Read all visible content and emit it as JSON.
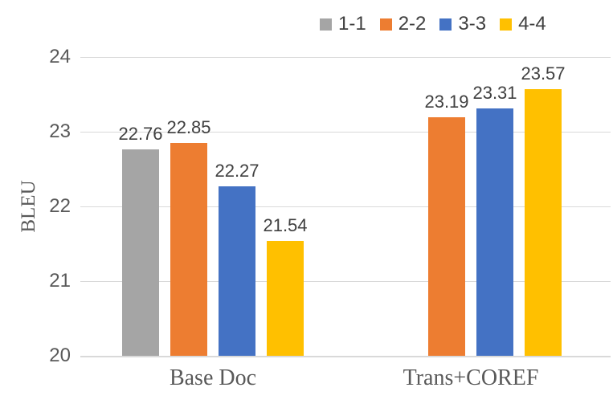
{
  "chart_data": {
    "type": "bar",
    "title": "",
    "xlabel": "",
    "ylabel": "BLEU",
    "ylim": [
      20,
      24
    ],
    "yticks": [
      20,
      21,
      22,
      23,
      24
    ],
    "grid": true,
    "legend_position": "top",
    "categories": [
      "Base Doc",
      "Trans+COREF"
    ],
    "series": [
      {
        "name": "1-1",
        "color": "#A5A5A5",
        "values": [
          22.76,
          null
        ]
      },
      {
        "name": "2-2",
        "color": "#ED7D31",
        "values": [
          22.85,
          23.19
        ]
      },
      {
        "name": "3-3",
        "color": "#4472C4",
        "values": [
          22.27,
          23.31
        ]
      },
      {
        "name": "4-4",
        "color": "#FFC000",
        "values": [
          21.54,
          23.57
        ]
      }
    ]
  },
  "colors": {
    "background": "#FFFFFF",
    "gridline": "#D9D9D9",
    "axis_line": "#D9D9D9",
    "tick_label": "#595959",
    "category_label": "#595959",
    "data_label": "#404040",
    "legend_label": "#404040"
  }
}
